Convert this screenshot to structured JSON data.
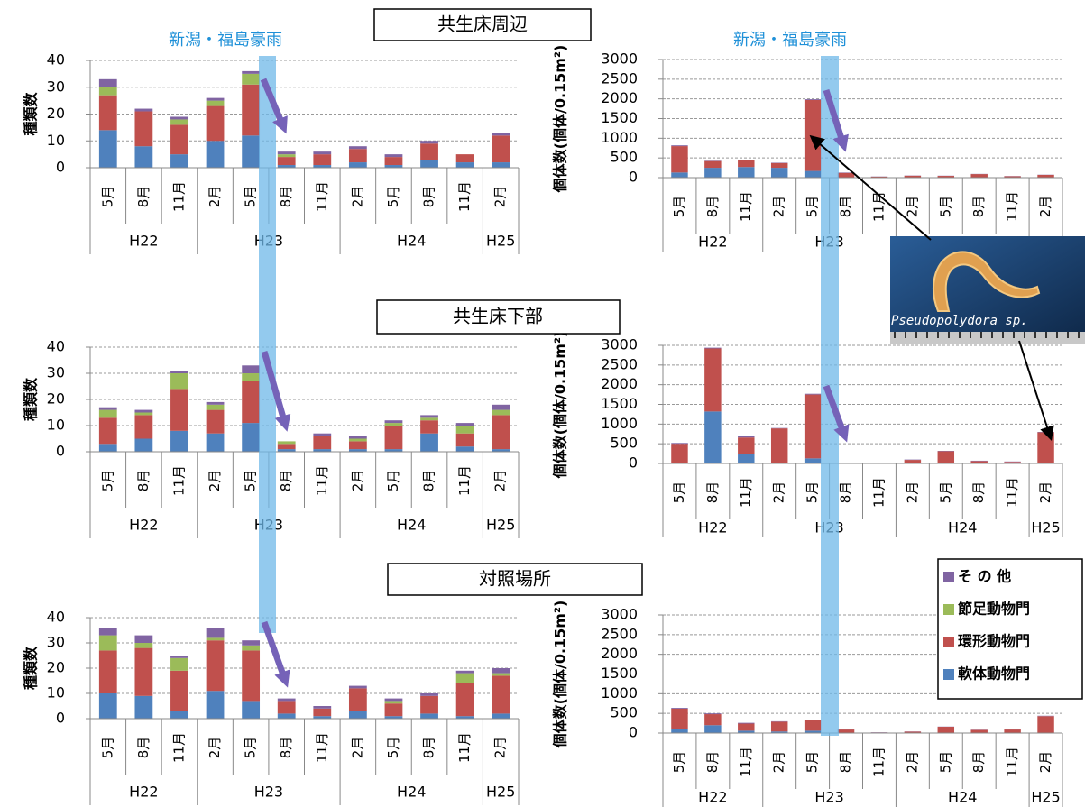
{
  "sections": [
    "共生床周辺",
    "共生床下部",
    "対照場所"
  ],
  "flood_labels": [
    "新潟・福島豪雨",
    "新潟・福島豪雨"
  ],
  "photo_caption": "Pseudopolydora sp.",
  "chart_data": [
    {
      "type": "stacked_bar",
      "y_label": "種類数",
      "categories": [
        "5月",
        "8月",
        "11月",
        "2月",
        "5月",
        "8月",
        "11月",
        "2月",
        "5月",
        "8月",
        "11月",
        "2月"
      ],
      "groups": [
        "H22",
        "H22",
        "H22",
        "H23",
        "H23",
        "H23",
        "H23",
        "H24",
        "H24",
        "H24",
        "H24",
        "H25"
      ],
      "ylim": [
        0,
        40
      ],
      "yticks": [
        0,
        10,
        20,
        30,
        40
      ],
      "grid": true,
      "series": [
        {
          "color": "#4f81bd",
          "values": [
            14,
            8,
            5,
            10,
            12,
            1,
            1,
            2,
            1,
            3,
            2,
            2
          ]
        },
        {
          "color": "#c0504d",
          "values": [
            13,
            13,
            11,
            13,
            19,
            3,
            4,
            5,
            3,
            6,
            3,
            10
          ]
        },
        {
          "color": "#9bbb59",
          "values": [
            3,
            0,
            2,
            2,
            4,
            1,
            0,
            0,
            0,
            0,
            0,
            0
          ]
        },
        {
          "color": "#8064a2",
          "values": [
            3,
            1,
            1,
            1,
            1,
            1,
            1,
            1,
            1,
            1,
            0,
            1
          ]
        }
      ]
    },
    {
      "type": "stacked_bar",
      "y_label": "個体数(個体/0.15m²)",
      "categories": [
        "5月",
        "8月",
        "11月",
        "2月",
        "5月",
        "8月",
        "11月",
        "2月",
        "5月",
        "8月",
        "11月",
        "2月"
      ],
      "groups": [
        "H22",
        "H22",
        "H22",
        "H23",
        "H23",
        "H23",
        "H23",
        "H24",
        "H24",
        "H24",
        "H24",
        "H25"
      ],
      "ylim": [
        0,
        3000
      ],
      "yticks": [
        0,
        500,
        1000,
        1500,
        2000,
        2500,
        3000
      ],
      "grid": true,
      "series": [
        {
          "color": "#4f81bd",
          "values": [
            130,
            250,
            270,
            250,
            170,
            10,
            5,
            10,
            5,
            10,
            5,
            10
          ]
        },
        {
          "color": "#c0504d",
          "values": [
            670,
            170,
            170,
            120,
            1800,
            110,
            20,
            40,
            40,
            80,
            30,
            60
          ]
        },
        {
          "color": "#9bbb59",
          "values": [
            0,
            0,
            0,
            0,
            0,
            0,
            0,
            0,
            0,
            0,
            0,
            0
          ]
        },
        {
          "color": "#8064a2",
          "values": [
            20,
            10,
            10,
            10,
            20,
            10,
            5,
            5,
            5,
            5,
            5,
            5
          ]
        }
      ]
    },
    {
      "type": "stacked_bar",
      "y_label": "種類数",
      "categories": [
        "5月",
        "8月",
        "11月",
        "2月",
        "5月",
        "8月",
        "11月",
        "2月",
        "5月",
        "8月",
        "11月",
        "2月"
      ],
      "groups": [
        "H22",
        "H22",
        "H22",
        "H23",
        "H23",
        "H23",
        "H23",
        "H24",
        "H24",
        "H24",
        "H24",
        "H25"
      ],
      "ylim": [
        0,
        40
      ],
      "yticks": [
        0,
        10,
        20,
        30,
        40
      ],
      "grid": true,
      "series": [
        {
          "color": "#4f81bd",
          "values": [
            3,
            5,
            8,
            7,
            11,
            1,
            1,
            1,
            1,
            7,
            2,
            1
          ]
        },
        {
          "color": "#c0504d",
          "values": [
            10,
            9,
            16,
            9,
            16,
            2,
            5,
            3,
            9,
            5,
            5,
            13
          ]
        },
        {
          "color": "#9bbb59",
          "values": [
            3,
            1,
            6,
            2,
            3,
            1,
            0,
            1,
            1,
            1,
            3,
            2
          ]
        },
        {
          "color": "#8064a2",
          "values": [
            1,
            1,
            1,
            1,
            3,
            0,
            1,
            1,
            1,
            1,
            1,
            2
          ]
        }
      ]
    },
    {
      "type": "stacked_bar",
      "y_label": "個体数(個体/0.15m²)",
      "categories": [
        "5月",
        "8月",
        "11月",
        "2月",
        "5月",
        "8月",
        "11月",
        "2月",
        "5月",
        "8月",
        "11月",
        "2月"
      ],
      "groups": [
        "H22",
        "H22",
        "H22",
        "H23",
        "H23",
        "H23",
        "H23",
        "H24",
        "H24",
        "H24",
        "H24",
        "H25"
      ],
      "ylim": [
        0,
        3000
      ],
      "yticks": [
        0,
        500,
        1000,
        1500,
        2000,
        2500,
        3000
      ],
      "grid": true,
      "series": [
        {
          "color": "#4f81bd",
          "values": [
            10,
            1320,
            240,
            10,
            130,
            5,
            5,
            10,
            10,
            10,
            10,
            10
          ]
        },
        {
          "color": "#c0504d",
          "values": [
            490,
            1600,
            420,
            880,
            1620,
            10,
            10,
            80,
            300,
            50,
            30,
            780
          ]
        },
        {
          "color": "#9bbb59",
          "values": [
            0,
            0,
            0,
            0,
            0,
            0,
            0,
            0,
            0,
            0,
            0,
            0
          ]
        },
        {
          "color": "#8064a2",
          "values": [
            20,
            20,
            30,
            10,
            20,
            5,
            5,
            10,
            10,
            10,
            10,
            10
          ]
        }
      ]
    },
    {
      "type": "stacked_bar",
      "y_label": "種類数",
      "categories": [
        "5月",
        "8月",
        "11月",
        "2月",
        "5月",
        "8月",
        "11月",
        "2月",
        "5月",
        "8月",
        "11月",
        "2月"
      ],
      "groups": [
        "H22",
        "H22",
        "H22",
        "H23",
        "H23",
        "H23",
        "H23",
        "H24",
        "H24",
        "H24",
        "H24",
        "H25"
      ],
      "ylim": [
        0,
        40
      ],
      "yticks": [
        0,
        10,
        20,
        30,
        40
      ],
      "grid": true,
      "series": [
        {
          "color": "#4f81bd",
          "values": [
            10,
            9,
            3,
            11,
            7,
            2,
            1,
            3,
            1,
            2,
            1,
            2
          ]
        },
        {
          "color": "#c0504d",
          "values": [
            17,
            19,
            16,
            20,
            20,
            5,
            3,
            9,
            5,
            7,
            13,
            15
          ]
        },
        {
          "color": "#9bbb59",
          "values": [
            6,
            2,
            5,
            1,
            2,
            0,
            0,
            0,
            1,
            0,
            4,
            1
          ]
        },
        {
          "color": "#8064a2",
          "values": [
            3,
            3,
            1,
            4,
            2,
            1,
            1,
            1,
            1,
            1,
            1,
            2
          ]
        }
      ]
    },
    {
      "type": "stacked_bar",
      "y_label": "個体数(個体/0.15m²)",
      "legend": "right",
      "categories": [
        "5月",
        "8月",
        "11月",
        "2月",
        "5月",
        "8月",
        "11月",
        "2月",
        "5月",
        "8月",
        "11月",
        "2月"
      ],
      "groups": [
        "H22",
        "H22",
        "H22",
        "H23",
        "H23",
        "H23",
        "H23",
        "H24",
        "H24",
        "H24",
        "H24",
        "H25"
      ],
      "ylim": [
        0,
        3000
      ],
      "yticks": [
        0,
        500,
        1000,
        1500,
        2000,
        2500,
        3000
      ],
      "grid": true,
      "series": [
        {
          "name": "軟体動物門",
          "color": "#4f81bd",
          "values": [
            100,
            200,
            60,
            40,
            60,
            10,
            5,
            5,
            10,
            10,
            10,
            10
          ]
        },
        {
          "name": "環形動物門",
          "color": "#c0504d",
          "values": [
            520,
            280,
            180,
            250,
            270,
            80,
            10,
            30,
            150,
            70,
            80,
            420
          ]
        },
        {
          "name": "節足動物門",
          "color": "#9bbb59",
          "values": [
            0,
            0,
            0,
            0,
            0,
            0,
            0,
            0,
            0,
            0,
            0,
            0
          ]
        },
        {
          "name": "そ の 他",
          "color": "#8064a2",
          "values": [
            20,
            20,
            20,
            10,
            10,
            10,
            5,
            5,
            5,
            5,
            5,
            10
          ]
        }
      ]
    }
  ]
}
